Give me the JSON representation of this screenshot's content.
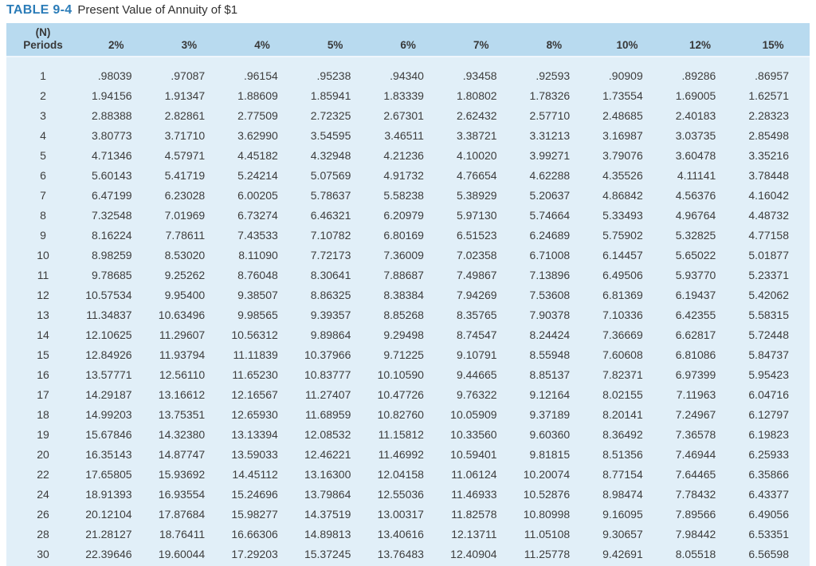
{
  "title": {
    "label": "TABLE 9-4",
    "text": "Present Value of Annuity of $1"
  },
  "colors": {
    "title_blue": "#2b7cb8",
    "header_bg": "#b8daef",
    "body_bg": "#e1eff8",
    "text": "#3d3d3d"
  },
  "table": {
    "periods_header": "(N)\nPeriods",
    "rate_headers": [
      "2%",
      "3%",
      "4%",
      "5%",
      "6%",
      "7%",
      "8%",
      "10%",
      "12%",
      "15%"
    ],
    "rows": [
      {
        "period": "1",
        "values": [
          ".98039",
          ".97087",
          ".96154",
          ".95238",
          ".94340",
          ".93458",
          ".92593",
          ".90909",
          ".89286",
          ".86957"
        ]
      },
      {
        "period": "2",
        "values": [
          "1.94156",
          "1.91347",
          "1.88609",
          "1.85941",
          "1.83339",
          "1.80802",
          "1.78326",
          "1.73554",
          "1.69005",
          "1.62571"
        ]
      },
      {
        "period": "3",
        "values": [
          "2.88388",
          "2.82861",
          "2.77509",
          "2.72325",
          "2.67301",
          "2.62432",
          "2.57710",
          "2.48685",
          "2.40183",
          "2.28323"
        ]
      },
      {
        "period": "4",
        "values": [
          "3.80773",
          "3.71710",
          "3.62990",
          "3.54595",
          "3.46511",
          "3.38721",
          "3.31213",
          "3.16987",
          "3.03735",
          "2.85498"
        ]
      },
      {
        "period": "5",
        "values": [
          "4.71346",
          "4.57971",
          "4.45182",
          "4.32948",
          "4.21236",
          "4.10020",
          "3.99271",
          "3.79076",
          "3.60478",
          "3.35216"
        ]
      },
      {
        "period": "6",
        "values": [
          "5.60143",
          "5.41719",
          "5.24214",
          "5.07569",
          "4.91732",
          "4.76654",
          "4.62288",
          "4.35526",
          "4.11141",
          "3.78448"
        ]
      },
      {
        "period": "7",
        "values": [
          "6.47199",
          "6.23028",
          "6.00205",
          "5.78637",
          "5.58238",
          "5.38929",
          "5.20637",
          "4.86842",
          "4.56376",
          "4.16042"
        ]
      },
      {
        "period": "8",
        "values": [
          "7.32548",
          "7.01969",
          "6.73274",
          "6.46321",
          "6.20979",
          "5.97130",
          "5.74664",
          "5.33493",
          "4.96764",
          "4.48732"
        ]
      },
      {
        "period": "9",
        "values": [
          "8.16224",
          "7.78611",
          "7.43533",
          "7.10782",
          "6.80169",
          "6.51523",
          "6.24689",
          "5.75902",
          "5.32825",
          "4.77158"
        ]
      },
      {
        "period": "10",
        "values": [
          "8.98259",
          "8.53020",
          "8.11090",
          "7.72173",
          "7.36009",
          "7.02358",
          "6.71008",
          "6.14457",
          "5.65022",
          "5.01877"
        ]
      },
      {
        "period": "11",
        "values": [
          "9.78685",
          "9.25262",
          "8.76048",
          "8.30641",
          "7.88687",
          "7.49867",
          "7.13896",
          "6.49506",
          "5.93770",
          "5.23371"
        ]
      },
      {
        "period": "12",
        "values": [
          "10.57534",
          "9.95400",
          "9.38507",
          "8.86325",
          "8.38384",
          "7.94269",
          "7.53608",
          "6.81369",
          "6.19437",
          "5.42062"
        ]
      },
      {
        "period": "13",
        "values": [
          "11.34837",
          "10.63496",
          "9.98565",
          "9.39357",
          "8.85268",
          "8.35765",
          "7.90378",
          "7.10336",
          "6.42355",
          "5.58315"
        ]
      },
      {
        "period": "14",
        "values": [
          "12.10625",
          "11.29607",
          "10.56312",
          "9.89864",
          "9.29498",
          "8.74547",
          "8.24424",
          "7.36669",
          "6.62817",
          "5.72448"
        ]
      },
      {
        "period": "15",
        "values": [
          "12.84926",
          "11.93794",
          "11.11839",
          "10.37966",
          "9.71225",
          "9.10791",
          "8.55948",
          "7.60608",
          "6.81086",
          "5.84737"
        ]
      },
      {
        "period": "16",
        "values": [
          "13.57771",
          "12.56110",
          "11.65230",
          "10.83777",
          "10.10590",
          "9.44665",
          "8.85137",
          "7.82371",
          "6.97399",
          "5.95423"
        ]
      },
      {
        "period": "17",
        "values": [
          "14.29187",
          "13.16612",
          "12.16567",
          "11.27407",
          "10.47726",
          "9.76322",
          "9.12164",
          "8.02155",
          "7.11963",
          "6.04716"
        ]
      },
      {
        "period": "18",
        "values": [
          "14.99203",
          "13.75351",
          "12.65930",
          "11.68959",
          "10.82760",
          "10.05909",
          "9.37189",
          "8.20141",
          "7.24967",
          "6.12797"
        ]
      },
      {
        "period": "19",
        "values": [
          "15.67846",
          "14.32380",
          "13.13394",
          "12.08532",
          "11.15812",
          "10.33560",
          "9.60360",
          "8.36492",
          "7.36578",
          "6.19823"
        ]
      },
      {
        "period": "20",
        "values": [
          "16.35143",
          "14.87747",
          "13.59033",
          "12.46221",
          "11.46992",
          "10.59401",
          "9.81815",
          "8.51356",
          "7.46944",
          "6.25933"
        ]
      },
      {
        "period": "22",
        "values": [
          "17.65805",
          "15.93692",
          "14.45112",
          "13.16300",
          "12.04158",
          "11.06124",
          "10.20074",
          "8.77154",
          "7.64465",
          "6.35866"
        ]
      },
      {
        "period": "24",
        "values": [
          "18.91393",
          "16.93554",
          "15.24696",
          "13.79864",
          "12.55036",
          "11.46933",
          "10.52876",
          "8.98474",
          "7.78432",
          "6.43377"
        ]
      },
      {
        "period": "26",
        "values": [
          "20.12104",
          "17.87684",
          "15.98277",
          "14.37519",
          "13.00317",
          "11.82578",
          "10.80998",
          "9.16095",
          "7.89566",
          "6.49056"
        ]
      },
      {
        "period": "28",
        "values": [
          "21.28127",
          "18.76411",
          "16.66306",
          "14.89813",
          "13.40616",
          "12.13711",
          "11.05108",
          "9.30657",
          "7.98442",
          "6.53351"
        ]
      },
      {
        "period": "30",
        "values": [
          "22.39646",
          "19.60044",
          "17.29203",
          "15.37245",
          "13.76483",
          "12.40904",
          "11.25778",
          "9.42691",
          "8.05518",
          "6.56598"
        ]
      }
    ]
  }
}
